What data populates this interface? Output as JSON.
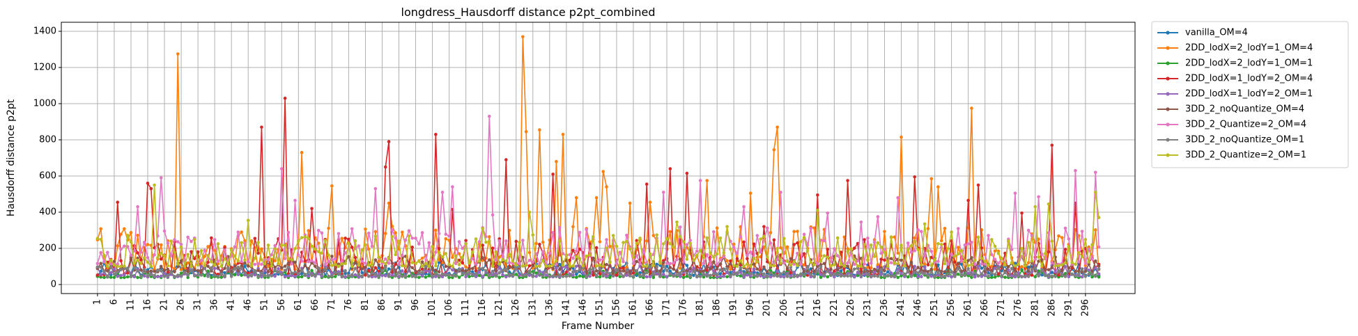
{
  "chart_data": {
    "type": "line",
    "title": "longdress_Hausdorff distance p2pt_combined",
    "xlabel": "Frame Number",
    "ylabel": "Hausdorff distance p2pt",
    "x_range": [
      1,
      300
    ],
    "x_tick_labels": [
      "1",
      "6",
      "11",
      "16",
      "21",
      "26",
      "31",
      "36",
      "41",
      "46",
      "51",
      "56",
      "61",
      "66",
      "71",
      "76",
      "81",
      "86",
      "91",
      "96",
      "101",
      "106",
      "111",
      "116",
      "121",
      "126",
      "131",
      "136",
      "141",
      "146",
      "151",
      "156",
      "161",
      "166",
      "171",
      "176",
      "181",
      "186",
      "191",
      "196",
      "201",
      "206",
      "211",
      "216",
      "221",
      "226",
      "231",
      "236",
      "241",
      "246",
      "251",
      "256",
      "261",
      "266",
      "271",
      "276",
      "281",
      "286",
      "291",
      "296"
    ],
    "ylim": [
      -50,
      1450
    ],
    "y_ticks": [
      0,
      200,
      400,
      600,
      800,
      1000,
      1200,
      1400
    ],
    "grid": true,
    "legend_position": "outside-right",
    "series": [
      {
        "name": "vanilla_OM=4",
        "color": "#1f77b4",
        "base": 70,
        "spread": 45,
        "seed": 11,
        "peaks": []
      },
      {
        "name": "2DD_lodX=2_lodY=1_OM=4",
        "color": "#ff7f0e",
        "base": 150,
        "spread": 150,
        "seed": 23,
        "peaks": [
          [
            25,
            1275
          ],
          [
            128,
            1370
          ],
          [
            133,
            855
          ],
          [
            129,
            845
          ],
          [
            140,
            830
          ],
          [
            138,
            680
          ],
          [
            204,
            870
          ],
          [
            203,
            745
          ],
          [
            241,
            815
          ],
          [
            262,
            975
          ],
          [
            62,
            730
          ],
          [
            152,
            625
          ],
          [
            150,
            480
          ],
          [
            71,
            545
          ],
          [
            88,
            450
          ],
          [
            250,
            585
          ],
          [
            252,
            540
          ],
          [
            183,
            575
          ],
          [
            166,
            455
          ],
          [
            153,
            540
          ],
          [
            144,
            480
          ],
          [
            196,
            505
          ],
          [
            160,
            450
          ]
        ]
      },
      {
        "name": "2DD_lodX=2_lodY=1_OM=1",
        "color": "#2ca02c",
        "base": 50,
        "spread": 25,
        "seed": 31,
        "peaks": []
      },
      {
        "name": "2DD_lodX=1_lodY=2_OM=4",
        "color": "#d62728",
        "base": 110,
        "spread": 130,
        "seed": 41,
        "peaks": [
          [
            50,
            870
          ],
          [
            57,
            1030
          ],
          [
            88,
            790
          ],
          [
            102,
            830
          ],
          [
            87,
            650
          ],
          [
            123,
            690
          ],
          [
            137,
            610
          ],
          [
            172,
            640
          ],
          [
            177,
            615
          ],
          [
            165,
            555
          ],
          [
            225,
            575
          ],
          [
            216,
            495
          ],
          [
            245,
            595
          ],
          [
            261,
            465
          ],
          [
            264,
            550
          ],
          [
            286,
            770
          ],
          [
            293,
            450
          ],
          [
            16,
            560
          ],
          [
            17,
            530
          ],
          [
            7,
            455
          ],
          [
            65,
            420
          ],
          [
            107,
            415
          ],
          [
            277,
            395
          ],
          [
            200,
            320
          ]
        ]
      },
      {
        "name": "2DD_lodX=1_lodY=2_OM=1",
        "color": "#9467bd",
        "base": 60,
        "spread": 40,
        "seed": 53,
        "peaks": []
      },
      {
        "name": "3DD_2_noQuantize_OM=4",
        "color": "#8c564b",
        "base": 95,
        "spread": 55,
        "seed": 61,
        "peaks": []
      },
      {
        "name": "3DD_2_Quantize=2_OM=4",
        "color": "#e377c2",
        "base": 170,
        "spread": 130,
        "seed": 71,
        "peaks": [
          [
            118,
            930
          ],
          [
            20,
            590
          ],
          [
            56,
            640
          ],
          [
            60,
            465
          ],
          [
            84,
            530
          ],
          [
            104,
            510
          ],
          [
            107,
            540
          ],
          [
            119,
            385
          ],
          [
            170,
            510
          ],
          [
            181,
            575
          ],
          [
            194,
            430
          ],
          [
            205,
            510
          ],
          [
            219,
            395
          ],
          [
            240,
            480
          ],
          [
            275,
            505
          ],
          [
            282,
            485
          ],
          [
            293,
            630
          ],
          [
            299,
            620
          ],
          [
            234,
            375
          ],
          [
            229,
            345
          ],
          [
            13,
            430
          ]
        ]
      },
      {
        "name": "3DD_2_noQuantize_OM=1",
        "color": "#7f7f7f",
        "base": 60,
        "spread": 35,
        "seed": 83,
        "peaks": []
      },
      {
        "name": "3DD_2_Quantize=2_OM=1",
        "color": "#bcbd22",
        "base": 150,
        "spread": 110,
        "seed": 97,
        "peaks": [
          [
            18,
            550
          ],
          [
            116,
            310
          ],
          [
            130,
            400
          ],
          [
            174,
            345
          ],
          [
            216,
            410
          ],
          [
            248,
            335
          ],
          [
            281,
            430
          ],
          [
            285,
            445
          ],
          [
            299,
            510
          ],
          [
            300,
            370
          ],
          [
            46,
            355
          ],
          [
            189,
            320
          ],
          [
            256,
            290
          ]
        ]
      }
    ]
  }
}
